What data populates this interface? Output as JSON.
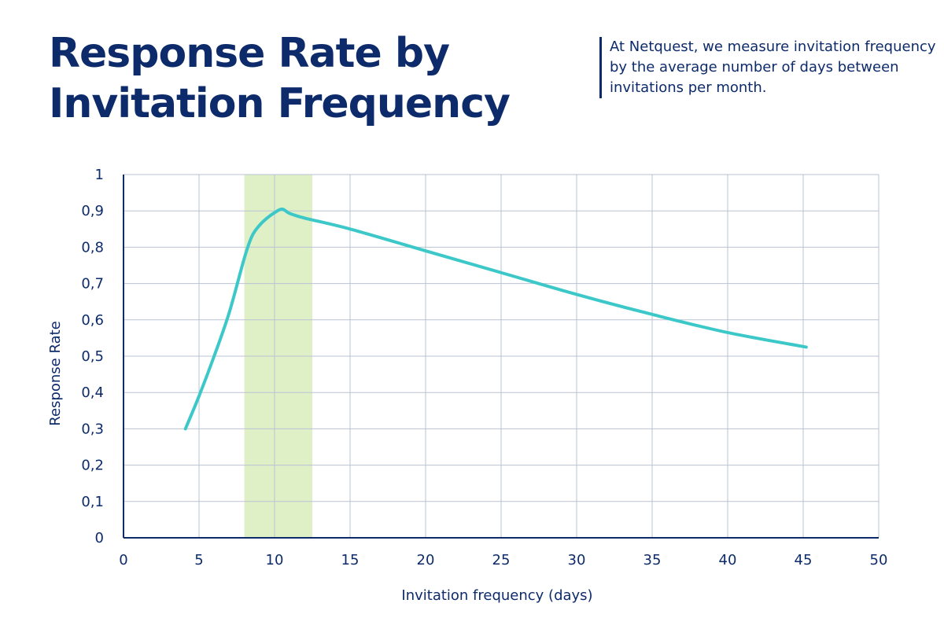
{
  "title": "Response Rate by Invitation Frequency",
  "note": "At Netquest, we measure invitation frequency by the average number of days between invitations per month.",
  "colors": {
    "text": "#0d2b6b",
    "line": "#3cc8c8",
    "highlight": "#dff0c7",
    "grid": "#b9c3d3"
  },
  "chart_data": {
    "type": "line",
    "title": "Response Rate by Invitation Frequency",
    "xlabel": "Invitation frequency (days)",
    "ylabel": "Response Rate",
    "xlim": [
      0,
      50
    ],
    "ylim": [
      0,
      1
    ],
    "x_ticks": [
      0,
      5,
      10,
      15,
      20,
      25,
      30,
      35,
      40,
      45,
      50
    ],
    "x_tick_labels": [
      "0",
      "5",
      "10",
      "15",
      "20",
      "25",
      "30",
      "35",
      "40",
      "45",
      "50"
    ],
    "y_ticks": [
      0,
      0.1,
      0.2,
      0.3,
      0.4,
      0.5,
      0.6,
      0.7,
      0.8,
      0.9,
      1
    ],
    "y_tick_labels": [
      "0",
      "0,1",
      "0,2",
      "0,3",
      "0,4",
      "0,5",
      "0,6",
      "0,7",
      "0,8",
      "0,9",
      "1"
    ],
    "highlight_band": {
      "x_start": 8,
      "x_end": 12.5
    },
    "grid": true,
    "legend": false,
    "series": [
      {
        "x": [
          4.1,
          5,
          6,
          7,
          8,
          8.5,
          9,
          9.5,
          10,
          10.5,
          11,
          12,
          15,
          20,
          25,
          30,
          35,
          40,
          45.2
        ],
        "y": [
          0.3,
          0.39,
          0.5,
          0.62,
          0.77,
          0.83,
          0.86,
          0.88,
          0.895,
          0.905,
          0.893,
          0.88,
          0.85,
          0.79,
          0.73,
          0.67,
          0.615,
          0.565,
          0.525
        ]
      }
    ]
  }
}
